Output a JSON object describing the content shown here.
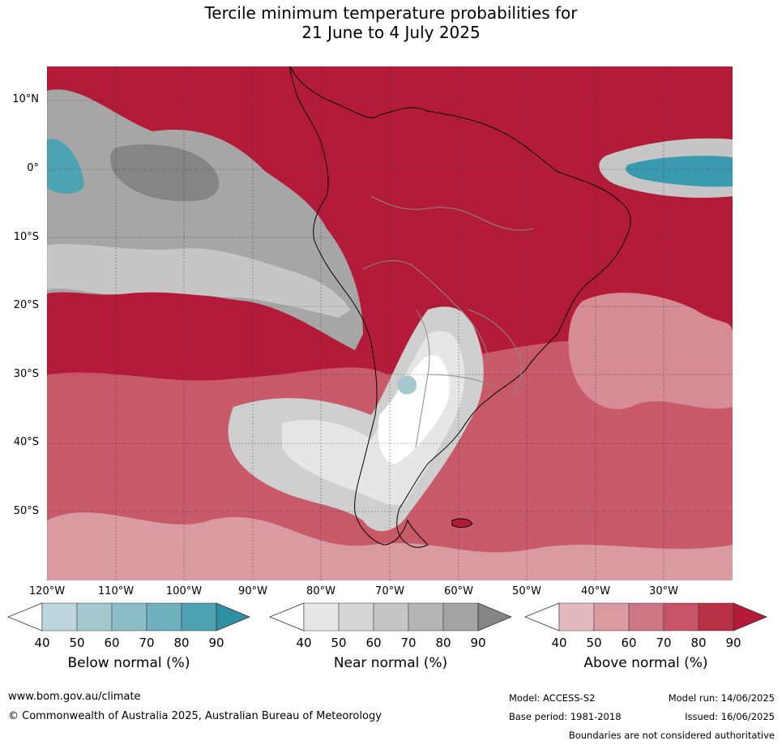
{
  "title_line1": "Tercile minimum temperature probabilities for",
  "title_line2": "21 June to 4 July 2025",
  "map": {
    "lat_labels": [
      "10°N",
      "0°",
      "10°S",
      "20°S",
      "30°S",
      "40°S",
      "50°S"
    ],
    "lon_labels": [
      "120°W",
      "110°W",
      "100°W",
      "90°W",
      "80°W",
      "70°W",
      "60°W",
      "50°W",
      "40°W",
      "30°W"
    ],
    "extent": {
      "lon_min": -120,
      "lon_max": -20,
      "lat_min": -60,
      "lat_max": 15
    },
    "colors": {
      "above_dominant": "#b31b38",
      "near_dominant": "#a6a6a6",
      "below_dominant": "#3a9ab0",
      "land_outline": "#000000",
      "border": "#8a8a8a"
    }
  },
  "colorbars": [
    {
      "name": "below",
      "title": "Below normal (%)",
      "ticks": [
        "40",
        "50",
        "60",
        "70",
        "80",
        "90"
      ],
      "colors": [
        "#bcd6dc",
        "#a5c8cf",
        "#8cbcc5",
        "#6fb0bd",
        "#4ea3b3",
        "#2e90a3"
      ]
    },
    {
      "name": "near",
      "title": "Near normal (%)",
      "ticks": [
        "40",
        "50",
        "60",
        "70",
        "80",
        "90"
      ],
      "colors": [
        "#e6e6e6",
        "#d6d6d6",
        "#c6c6c6",
        "#b5b5b5",
        "#a3a3a3",
        "#858585"
      ]
    },
    {
      "name": "above",
      "title": "Above normal (%)",
      "ticks": [
        "40",
        "50",
        "60",
        "70",
        "80",
        "90"
      ],
      "colors": [
        "#e2b9be",
        "#d99aa2",
        "#cd7784",
        "#c65466",
        "#b93147",
        "#b31b38"
      ]
    }
  ],
  "footer": {
    "url": "www.bom.gov.au/climate",
    "copyright": "© Commonwealth of Australia 2025, Australian Bureau of Meteorology",
    "model": "Model: ACCESS-S2",
    "model_run": "Model run: 14/06/2025",
    "base_period": "Base period: 1981-2018",
    "issued": "Issued: 16/06/2025",
    "disclaimer": "Boundaries are not considered authoritative"
  }
}
